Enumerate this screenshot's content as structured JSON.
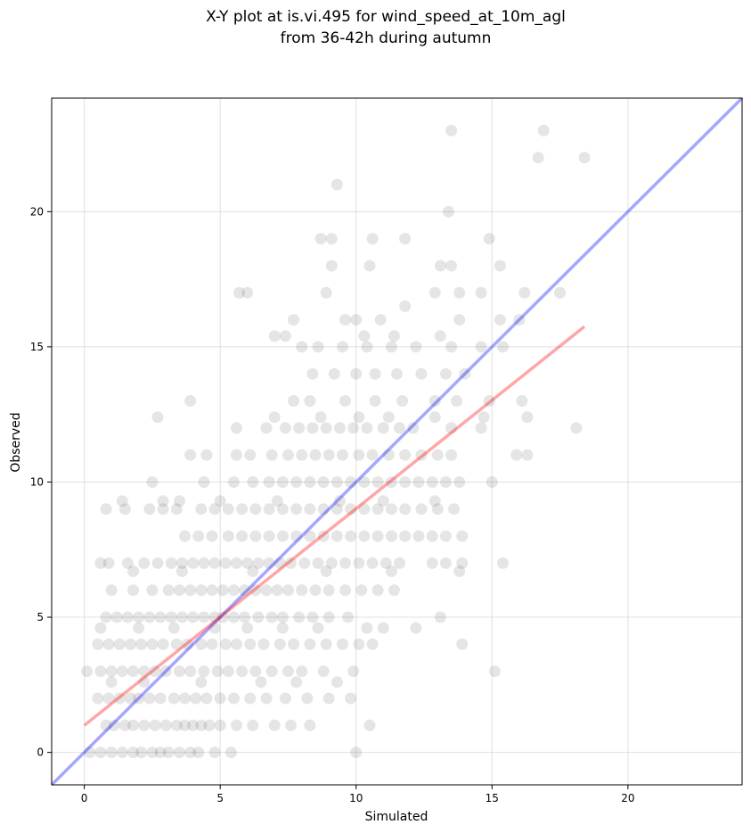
{
  "chart_data": {
    "type": "scatter",
    "title_line1": "X-Y plot at is.vi.495 for wind_speed_at_10m_agl",
    "title_line2": "from 36-42h during autumn",
    "xlabel": "Simulated",
    "ylabel": "Observed",
    "xlim": [
      -1.2,
      24.2
    ],
    "ylim": [
      -1.2,
      24.2
    ],
    "xticks": [
      0,
      5,
      10,
      15,
      20
    ],
    "yticks": [
      0,
      5,
      10,
      15,
      20
    ],
    "grid": true,
    "colors": {
      "points": "#333333",
      "identity_line": "#0000ff",
      "fit_line": "#ff0000",
      "grid": "#cccccc"
    },
    "identity_line": {
      "x": [
        -1.2,
        24.2
      ],
      "y": [
        -1.2,
        24.2
      ]
    },
    "fit_line": {
      "x": [
        0,
        18.4
      ],
      "y": [
        1.0,
        15.75
      ]
    },
    "points": [
      [
        0.2,
        0
      ],
      [
        0.6,
        0
      ],
      [
        1.0,
        0
      ],
      [
        1.4,
        0
      ],
      [
        1.8,
        0
      ],
      [
        2.1,
        0
      ],
      [
        2.5,
        0
      ],
      [
        2.8,
        0
      ],
      [
        3.1,
        0
      ],
      [
        3.5,
        0
      ],
      [
        3.9,
        0
      ],
      [
        4.2,
        0
      ],
      [
        4.8,
        0
      ],
      [
        5.4,
        0
      ],
      [
        10.0,
        0
      ],
      [
        0.8,
        1
      ],
      [
        1.1,
        1
      ],
      [
        1.5,
        1
      ],
      [
        1.8,
        1
      ],
      [
        2.2,
        1
      ],
      [
        2.6,
        1
      ],
      [
        3.0,
        1
      ],
      [
        3.4,
        1
      ],
      [
        3.7,
        1
      ],
      [
        4.0,
        1
      ],
      [
        4.3,
        1
      ],
      [
        4.6,
        1
      ],
      [
        5.0,
        1
      ],
      [
        5.6,
        1
      ],
      [
        6.2,
        1
      ],
      [
        7.0,
        1
      ],
      [
        7.6,
        1
      ],
      [
        8.3,
        1
      ],
      [
        10.5,
        1
      ],
      [
        0.5,
        2
      ],
      [
        0.9,
        2
      ],
      [
        1.3,
        2
      ],
      [
        1.7,
        2
      ],
      [
        2.0,
        2
      ],
      [
        2.4,
        2
      ],
      [
        2.8,
        2
      ],
      [
        3.3,
        2
      ],
      [
        3.7,
        2
      ],
      [
        4.1,
        2
      ],
      [
        4.5,
        2
      ],
      [
        5.0,
        2
      ],
      [
        5.5,
        2
      ],
      [
        6.1,
        2
      ],
      [
        6.7,
        2
      ],
      [
        7.4,
        2
      ],
      [
        8.2,
        2
      ],
      [
        9.0,
        2
      ],
      [
        9.8,
        2
      ],
      [
        0.1,
        3
      ],
      [
        0.6,
        3
      ],
      [
        1.0,
        3
      ],
      [
        1.4,
        3
      ],
      [
        1.8,
        3
      ],
      [
        2.2,
        3
      ],
      [
        2.6,
        3
      ],
      [
        3.0,
        3
      ],
      [
        3.5,
        3
      ],
      [
        3.9,
        3
      ],
      [
        4.4,
        3
      ],
      [
        4.9,
        3
      ],
      [
        5.3,
        3
      ],
      [
        5.8,
        3
      ],
      [
        6.3,
        3
      ],
      [
        6.9,
        3
      ],
      [
        7.5,
        3
      ],
      [
        8.0,
        3
      ],
      [
        8.8,
        3
      ],
      [
        9.9,
        3
      ],
      [
        15.1,
        3
      ],
      [
        1.0,
        2.6
      ],
      [
        2.2,
        2.6
      ],
      [
        4.3,
        2.6
      ],
      [
        6.5,
        2.6
      ],
      [
        7.8,
        2.6
      ],
      [
        9.3,
        2.6
      ],
      [
        0.5,
        4
      ],
      [
        0.9,
        4
      ],
      [
        1.3,
        4
      ],
      [
        1.7,
        4
      ],
      [
        2.1,
        4
      ],
      [
        2.5,
        4
      ],
      [
        2.9,
        4
      ],
      [
        3.4,
        4
      ],
      [
        3.8,
        4
      ],
      [
        4.3,
        4
      ],
      [
        4.7,
        4
      ],
      [
        5.2,
        4
      ],
      [
        5.6,
        4
      ],
      [
        6.1,
        4
      ],
      [
        6.6,
        4
      ],
      [
        7.2,
        4
      ],
      [
        7.7,
        4
      ],
      [
        8.3,
        4
      ],
      [
        8.9,
        4
      ],
      [
        9.5,
        4
      ],
      [
        10.1,
        4
      ],
      [
        10.6,
        4
      ],
      [
        13.9,
        4
      ],
      [
        0.6,
        4.6
      ],
      [
        2.0,
        4.6
      ],
      [
        3.3,
        4.6
      ],
      [
        4.8,
        4.6
      ],
      [
        6.0,
        4.6
      ],
      [
        7.3,
        4.6
      ],
      [
        8.6,
        4.6
      ],
      [
        10.4,
        4.6
      ],
      [
        11.0,
        4.6
      ],
      [
        12.2,
        4.6
      ],
      [
        0.8,
        5
      ],
      [
        1.2,
        5
      ],
      [
        1.6,
        5
      ],
      [
        2.0,
        5
      ],
      [
        2.4,
        5
      ],
      [
        2.8,
        5
      ],
      [
        3.2,
        5
      ],
      [
        3.6,
        5
      ],
      [
        4.0,
        5
      ],
      [
        4.4,
        5
      ],
      [
        4.8,
        5
      ],
      [
        5.1,
        5
      ],
      [
        5.5,
        5
      ],
      [
        5.9,
        5
      ],
      [
        6.4,
        5
      ],
      [
        6.9,
        5
      ],
      [
        7.3,
        5
      ],
      [
        7.9,
        5
      ],
      [
        8.4,
        5
      ],
      [
        9.0,
        5
      ],
      [
        9.7,
        5
      ],
      [
        13.1,
        5
      ],
      [
        1.0,
        6
      ],
      [
        1.8,
        6
      ],
      [
        2.5,
        6
      ],
      [
        3.1,
        6
      ],
      [
        3.5,
        6
      ],
      [
        3.9,
        6
      ],
      [
        4.3,
        6
      ],
      [
        4.7,
        6
      ],
      [
        5.1,
        6
      ],
      [
        5.5,
        6
      ],
      [
        5.9,
        6
      ],
      [
        6.3,
        6
      ],
      [
        6.7,
        6
      ],
      [
        7.1,
        6
      ],
      [
        7.5,
        6
      ],
      [
        8.0,
        6
      ],
      [
        8.5,
        6
      ],
      [
        9.0,
        6
      ],
      [
        9.6,
        6
      ],
      [
        10.2,
        6
      ],
      [
        10.8,
        6
      ],
      [
        11.4,
        6
      ],
      [
        0.6,
        7
      ],
      [
        0.9,
        7
      ],
      [
        1.6,
        7
      ],
      [
        2.2,
        7
      ],
      [
        2.7,
        7
      ],
      [
        3.2,
        7
      ],
      [
        3.6,
        7
      ],
      [
        4.0,
        7
      ],
      [
        4.4,
        7
      ],
      [
        4.8,
        7
      ],
      [
        5.2,
        7
      ],
      [
        5.6,
        7
      ],
      [
        6.0,
        7
      ],
      [
        6.4,
        7
      ],
      [
        6.8,
        7
      ],
      [
        7.2,
        7
      ],
      [
        7.6,
        7
      ],
      [
        8.1,
        7
      ],
      [
        8.6,
        7
      ],
      [
        9.1,
        7
      ],
      [
        9.6,
        7
      ],
      [
        10.1,
        7
      ],
      [
        10.6,
        7
      ],
      [
        11.1,
        7
      ],
      [
        11.6,
        7
      ],
      [
        12.8,
        7
      ],
      [
        13.3,
        7
      ],
      [
        13.9,
        7
      ],
      [
        15.4,
        7
      ],
      [
        1.8,
        6.7
      ],
      [
        3.6,
        6.7
      ],
      [
        6.2,
        6.7
      ],
      [
        8.9,
        6.7
      ],
      [
        11.3,
        6.7
      ],
      [
        13.8,
        6.7
      ],
      [
        3.7,
        8
      ],
      [
        4.2,
        8
      ],
      [
        4.7,
        8
      ],
      [
        5.3,
        8
      ],
      [
        5.8,
        8
      ],
      [
        6.3,
        8
      ],
      [
        6.8,
        8
      ],
      [
        7.3,
        8
      ],
      [
        7.8,
        8
      ],
      [
        8.3,
        8
      ],
      [
        8.8,
        8
      ],
      [
        9.3,
        8
      ],
      [
        9.8,
        8
      ],
      [
        10.3,
        8
      ],
      [
        10.8,
        8
      ],
      [
        11.3,
        8
      ],
      [
        11.8,
        8
      ],
      [
        12.3,
        8
      ],
      [
        12.8,
        8
      ],
      [
        13.3,
        8
      ],
      [
        13.9,
        8
      ],
      [
        0.8,
        9
      ],
      [
        1.5,
        9
      ],
      [
        2.4,
        9
      ],
      [
        2.9,
        9
      ],
      [
        3.4,
        9
      ],
      [
        4.3,
        9
      ],
      [
        4.8,
        9
      ],
      [
        5.3,
        9
      ],
      [
        5.8,
        9
      ],
      [
        6.3,
        9
      ],
      [
        6.8,
        9
      ],
      [
        7.3,
        9
      ],
      [
        7.8,
        9
      ],
      [
        8.3,
        9
      ],
      [
        8.8,
        9
      ],
      [
        9.3,
        9
      ],
      [
        9.8,
        9
      ],
      [
        10.3,
        9
      ],
      [
        10.8,
        9
      ],
      [
        11.3,
        9
      ],
      [
        11.8,
        9
      ],
      [
        12.4,
        9
      ],
      [
        13.0,
        9
      ],
      [
        13.6,
        9
      ],
      [
        1.4,
        9.3
      ],
      [
        2.9,
        9.3
      ],
      [
        3.5,
        9.3
      ],
      [
        5.0,
        9.3
      ],
      [
        7.1,
        9.3
      ],
      [
        9.4,
        9.3
      ],
      [
        11.0,
        9.3
      ],
      [
        12.9,
        9.3
      ],
      [
        2.5,
        10
      ],
      [
        4.4,
        10
      ],
      [
        5.5,
        10
      ],
      [
        6.2,
        10
      ],
      [
        6.8,
        10
      ],
      [
        7.3,
        10
      ],
      [
        7.8,
        10
      ],
      [
        8.3,
        10
      ],
      [
        8.8,
        10
      ],
      [
        9.3,
        10
      ],
      [
        9.8,
        10
      ],
      [
        10.3,
        10
      ],
      [
        10.8,
        10
      ],
      [
        11.3,
        10
      ],
      [
        11.8,
        10
      ],
      [
        12.3,
        10
      ],
      [
        12.8,
        10
      ],
      [
        13.3,
        10
      ],
      [
        13.8,
        10
      ],
      [
        15.0,
        10
      ],
      [
        3.9,
        11
      ],
      [
        4.5,
        11
      ],
      [
        5.6,
        11
      ],
      [
        6.1,
        11
      ],
      [
        6.9,
        11
      ],
      [
        7.5,
        11
      ],
      [
        8.0,
        11
      ],
      [
        8.5,
        11
      ],
      [
        9.0,
        11
      ],
      [
        9.5,
        11
      ],
      [
        10.1,
        11
      ],
      [
        10.6,
        11
      ],
      [
        11.2,
        11
      ],
      [
        11.8,
        11
      ],
      [
        12.4,
        11
      ],
      [
        13.0,
        11
      ],
      [
        13.5,
        11
      ],
      [
        15.9,
        11
      ],
      [
        16.3,
        11
      ],
      [
        5.6,
        12
      ],
      [
        6.7,
        12
      ],
      [
        7.4,
        12
      ],
      [
        7.9,
        12
      ],
      [
        8.4,
        12
      ],
      [
        8.9,
        12
      ],
      [
        9.4,
        12
      ],
      [
        9.9,
        12
      ],
      [
        10.4,
        12
      ],
      [
        11.0,
        12
      ],
      [
        11.6,
        12
      ],
      [
        12.1,
        12
      ],
      [
        13.5,
        12
      ],
      [
        14.6,
        12
      ],
      [
        18.1,
        12
      ],
      [
        2.7,
        12.4
      ],
      [
        7.0,
        12.4
      ],
      [
        8.7,
        12.4
      ],
      [
        10.1,
        12.4
      ],
      [
        11.2,
        12.4
      ],
      [
        12.9,
        12.4
      ],
      [
        14.7,
        12.4
      ],
      [
        16.3,
        12.4
      ],
      [
        3.9,
        13
      ],
      [
        7.7,
        13
      ],
      [
        8.3,
        13
      ],
      [
        9.6,
        13
      ],
      [
        10.7,
        13
      ],
      [
        11.7,
        13
      ],
      [
        12.9,
        13
      ],
      [
        13.7,
        13
      ],
      [
        14.9,
        13
      ],
      [
        16.1,
        13
      ],
      [
        8.4,
        14
      ],
      [
        9.2,
        14
      ],
      [
        10.0,
        14
      ],
      [
        10.7,
        14
      ],
      [
        11.5,
        14
      ],
      [
        12.4,
        14
      ],
      [
        13.3,
        14
      ],
      [
        14.0,
        14
      ],
      [
        8.0,
        15
      ],
      [
        8.6,
        15
      ],
      [
        9.5,
        15
      ],
      [
        10.4,
        15
      ],
      [
        11.3,
        15
      ],
      [
        12.2,
        15
      ],
      [
        13.5,
        15
      ],
      [
        14.6,
        15
      ],
      [
        15.4,
        15
      ],
      [
        7.0,
        15.4
      ],
      [
        7.4,
        15.4
      ],
      [
        10.3,
        15.4
      ],
      [
        11.4,
        15.4
      ],
      [
        13.1,
        15.4
      ],
      [
        7.7,
        16
      ],
      [
        9.6,
        16
      ],
      [
        10.0,
        16
      ],
      [
        10.9,
        16
      ],
      [
        13.8,
        16
      ],
      [
        15.3,
        16
      ],
      [
        16.0,
        16
      ],
      [
        11.8,
        16.5
      ],
      [
        5.7,
        17
      ],
      [
        6.0,
        17
      ],
      [
        8.9,
        17
      ],
      [
        12.9,
        17
      ],
      [
        13.8,
        17
      ],
      [
        14.6,
        17
      ],
      [
        16.2,
        17
      ],
      [
        17.5,
        17
      ],
      [
        9.1,
        18
      ],
      [
        10.5,
        18
      ],
      [
        13.1,
        18
      ],
      [
        13.5,
        18
      ],
      [
        15.3,
        18
      ],
      [
        8.7,
        19
      ],
      [
        9.1,
        19
      ],
      [
        10.6,
        19
      ],
      [
        11.8,
        19
      ],
      [
        14.9,
        19
      ],
      [
        13.4,
        20
      ],
      [
        9.3,
        21
      ],
      [
        16.7,
        22
      ],
      [
        18.4,
        22
      ],
      [
        13.5,
        23
      ],
      [
        16.9,
        23
      ]
    ]
  }
}
